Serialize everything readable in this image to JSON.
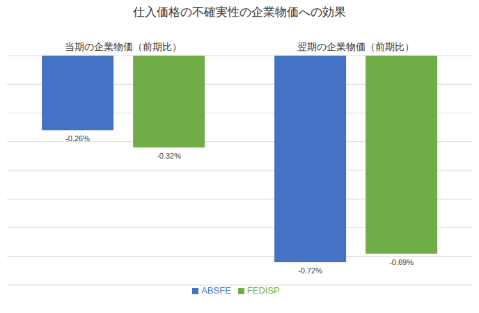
{
  "chart_data": {
    "type": "bar",
    "title": "仕入価格の不確実性の企業物価への効果",
    "categories": [
      "当期の企業物価（前期比）",
      "翌期の企業物価（前期比）"
    ],
    "series": [
      {
        "name": "ABSFE",
        "color": "#4472c4",
        "values": [
          -0.26,
          -0.72
        ],
        "value_labels": [
          "-0.26%",
          "-0.72%"
        ]
      },
      {
        "name": "FEDISP",
        "color": "#70ad47",
        "values": [
          -0.32,
          -0.69
        ],
        "value_labels": [
          "-0.32%",
          "-0.69%"
        ]
      }
    ],
    "ylim": [
      -0.8,
      0
    ],
    "yticks": [
      -0.8,
      -0.7,
      -0.6,
      -0.5,
      -0.4,
      -0.3,
      -0.2,
      -0.1,
      0
    ],
    "grid": true,
    "data_labels": true,
    "tick_labels": "x",
    "legend": "bottom"
  }
}
